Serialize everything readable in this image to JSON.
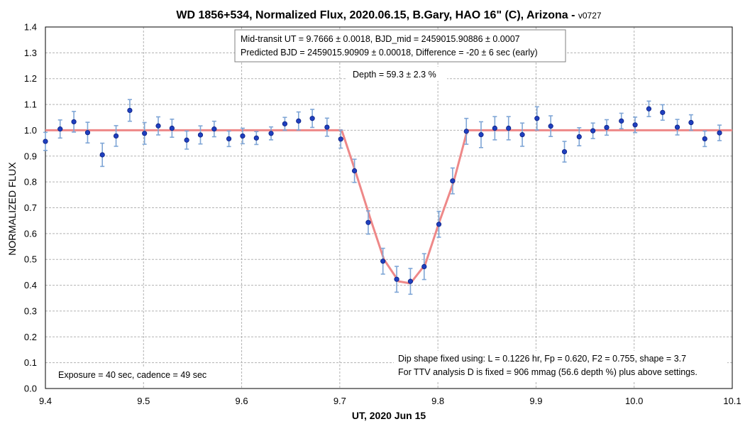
{
  "chart_data": {
    "type": "scatter",
    "title": "WD 1856+534, Normalized Flux, 2020.06.15, B.Gary, HAO 16\" (C), Arizona - ",
    "version": "v0727",
    "xlabel": "UT, 2020 Jun 15",
    "ylabel": "NORMALIZED FLUX",
    "xlim": [
      9.4,
      10.1
    ],
    "ylim": [
      0.0,
      1.4
    ],
    "xticks": [
      "9.4",
      "9.5",
      "9.6",
      "9.7",
      "9.8",
      "9.9",
      "10.0",
      "10.1"
    ],
    "yticks": [
      "0.0",
      "0.1",
      "0.2",
      "0.3",
      "0.4",
      "0.5",
      "0.6",
      "0.7",
      "0.8",
      "0.9",
      "1.0",
      "1.1",
      "1.2",
      "1.3",
      "1.4"
    ],
    "grid": true,
    "observations": {
      "color": "#1f3fbf",
      "error_color": "#7fa6d6",
      "x": [
        9.4,
        9.415,
        9.429,
        9.443,
        9.458,
        9.472,
        9.486,
        9.501,
        9.515,
        9.529,
        9.544,
        9.558,
        9.572,
        9.587,
        9.601,
        9.615,
        9.63,
        9.644,
        9.658,
        9.672,
        9.687,
        9.701,
        9.715,
        9.729,
        9.744,
        9.758,
        9.772,
        9.786,
        9.801,
        9.815,
        9.829,
        9.844,
        9.858,
        9.872,
        9.886,
        9.901,
        9.915,
        9.929,
        9.944,
        9.958,
        9.972,
        9.987,
        10.001,
        10.015,
        10.029,
        10.044,
        10.058,
        10.072,
        10.087
      ],
      "y": [
        0.957,
        1.005,
        1.033,
        0.991,
        0.905,
        0.978,
        1.077,
        0.988,
        1.017,
        1.008,
        0.962,
        0.982,
        1.005,
        0.967,
        0.978,
        0.97,
        0.988,
        1.025,
        1.036,
        1.046,
        1.012,
        0.966,
        0.843,
        0.643,
        0.493,
        0.423,
        0.415,
        0.472,
        0.636,
        0.804,
        0.996,
        0.983,
        1.008,
        1.008,
        0.983,
        1.046,
        1.016,
        0.917,
        0.975,
        0.998,
        1.011,
        1.036,
        1.021,
        1.083,
        1.069,
        1.012,
        1.03,
        0.967,
        0.99
      ],
      "err": [
        0.035,
        0.035,
        0.04,
        0.04,
        0.045,
        0.04,
        0.042,
        0.042,
        0.035,
        0.035,
        0.035,
        0.035,
        0.03,
        0.03,
        0.03,
        0.025,
        0.025,
        0.025,
        0.035,
        0.035,
        0.035,
        0.035,
        0.045,
        0.045,
        0.05,
        0.05,
        0.05,
        0.05,
        0.05,
        0.05,
        0.05,
        0.05,
        0.045,
        0.045,
        0.045,
        0.045,
        0.04,
        0.04,
        0.035,
        0.03,
        0.03,
        0.03,
        0.03,
        0.03,
        0.03,
        0.03,
        0.03,
        0.03,
        0.03
      ]
    },
    "model": {
      "color": "#ee8888",
      "x": [
        9.4,
        9.702,
        9.716,
        9.731,
        9.745,
        9.76,
        9.772,
        9.787,
        9.801,
        9.816,
        9.83,
        10.1
      ],
      "y": [
        1.0,
        1.0,
        0.84,
        0.66,
        0.5,
        0.415,
        0.407,
        0.48,
        0.64,
        0.8,
        1.0,
        1.0
      ]
    }
  },
  "annotations": {
    "box_line1": "Mid-transit UT = 9.7666 ± 0.0018, BJD_mid = 2459015.90886 ± 0.0007",
    "box_line2": "Predicted BJD = 2459015.90909 ± 0.00018, Difference = -20 ± 6 sec (early)",
    "depth": "Depth = 59.3 ± 2.3 %",
    "exposure": "Exposure = 40 sec, cadence = 49 sec",
    "dip_line1": "Dip shape fixed using:  L = 0.1226 hr, Fp = 0.620, F2 = 0.755, shape = 3.7",
    "dip_line2": "For TTV analysis D is fixed = 906 mmag (56.6 depth %) plus above settings."
  }
}
